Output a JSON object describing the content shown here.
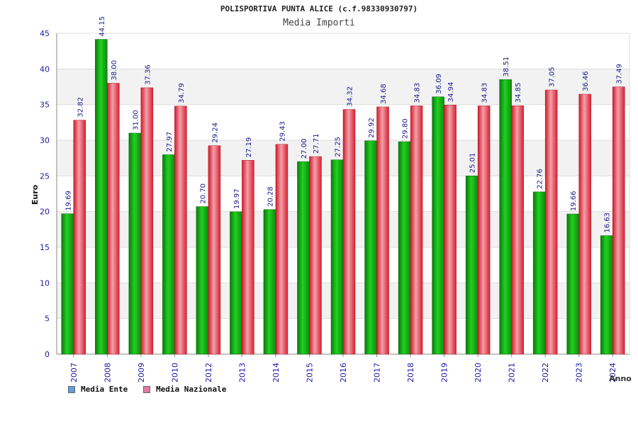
{
  "chart_data": {
    "type": "bar",
    "title": "POLISPORTIVA PUNTA ALICE (c.f.98330930797)",
    "subtitle": "Media Importi",
    "xlabel": "Anno",
    "ylabel": "Euro",
    "ylim": [
      0,
      45
    ],
    "yticks": [
      "0",
      "5",
      "10",
      "15",
      "20",
      "25",
      "30",
      "35",
      "40",
      "45"
    ],
    "grid": true,
    "legend_position": "bottom-left",
    "categories": [
      "2007",
      "2008",
      "2009",
      "2010",
      "2012",
      "2013",
      "2014",
      "2015",
      "2016",
      "2017",
      "2018",
      "2019",
      "2020",
      "2021",
      "2022",
      "2023",
      "2024"
    ],
    "series": [
      {
        "name": "Media Ente",
        "color": "#16b016",
        "values": [
          19.69,
          44.15,
          31.0,
          27.97,
          20.7,
          19.97,
          20.28,
          27.0,
          27.25,
          29.92,
          29.8,
          36.09,
          25.01,
          38.51,
          22.76,
          19.66,
          16.63
        ],
        "labels": [
          "19.69",
          "44.15",
          "31.00",
          "27.97",
          "20.70",
          "19.97",
          "20.28",
          "27.00",
          "27.25",
          "29.92",
          "29.80",
          "36.09",
          "25.01",
          "38.51",
          "22.76",
          "19.66",
          "16.63"
        ]
      },
      {
        "name": "Media Nazionale",
        "color": "#e0303f",
        "values": [
          32.82,
          38.0,
          37.36,
          34.79,
          29.24,
          27.19,
          29.43,
          27.71,
          34.32,
          34.68,
          34.83,
          34.94,
          34.83,
          34.85,
          37.05,
          36.46,
          37.49
        ],
        "labels": [
          "32.82",
          "38.00",
          "37.36",
          "34.79",
          "29.24",
          "27.19",
          "29.43",
          "27.71",
          "34.32",
          "34.68",
          "34.83",
          "34.94",
          "34.83",
          "34.85",
          "37.05",
          "36.46",
          "37.49"
        ]
      }
    ]
  },
  "legend": {
    "items": [
      {
        "label": "Media Ente",
        "swatch_color": "#5fa0e0"
      },
      {
        "label": "Media Nazionale",
        "swatch_color": "#e07aa0"
      }
    ]
  }
}
